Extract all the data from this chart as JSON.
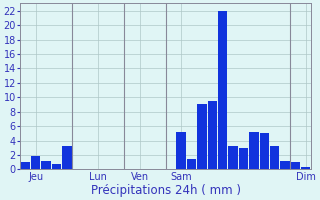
{
  "values": [
    1.0,
    1.8,
    1.2,
    0.8,
    3.2,
    0,
    0,
    0,
    0,
    0,
    0,
    0,
    0,
    0,
    0,
    5.2,
    1.5,
    9.0,
    9.5,
    22.0,
    3.2,
    3.0,
    5.2,
    5.0,
    3.2,
    1.2,
    1.0,
    0.3
  ],
  "n_bars": 28,
  "day_labels": [
    "Jeu",
    "Lun",
    "Ven",
    "Sam",
    "Dim"
  ],
  "day_tick_positions": [
    1,
    7,
    11,
    15,
    27
  ],
  "vline_positions": [
    4.5,
    9.5,
    13.5,
    25.5
  ],
  "xlabel": "Précipitations 24h ( mm )",
  "ylim": [
    0,
    23
  ],
  "yticks": [
    0,
    2,
    4,
    6,
    8,
    10,
    12,
    14,
    16,
    18,
    20,
    22
  ],
  "bar_color": "#1133dd",
  "bg_color": "#e0f5f5",
  "grid_color": "#aec8c8",
  "label_color": "#3333bb",
  "vline_color": "#888899",
  "tick_fontsize": 7,
  "xlabel_fontsize": 8.5
}
